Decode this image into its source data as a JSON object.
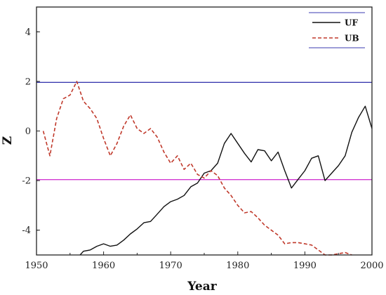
{
  "chart_data": {
    "type": "line",
    "xlabel": "Year",
    "ylabel": "Z",
    "xlim": [
      1950,
      2000
    ],
    "ylim": [
      -5,
      5
    ],
    "xticks": [
      1950,
      1960,
      1970,
      1980,
      1990,
      2000
    ],
    "yticks": [
      -4,
      -2,
      0,
      2,
      4
    ],
    "grid": false,
    "legend": "top-right",
    "reference_lines": [
      {
        "y": 1.96,
        "color": "#3b3bb0"
      },
      {
        "y": -1.96,
        "color": "#d23ad2"
      }
    ],
    "series": [
      {
        "name": "UF",
        "style": "solid",
        "color": "#111111",
        "x": [
          1956.5,
          1957,
          1958,
          1959,
          1960,
          1961,
          1962,
          1963,
          1964,
          1965,
          1966,
          1967,
          1968,
          1969,
          1970,
          1971,
          1972,
          1973,
          1974,
          1975,
          1976,
          1977,
          1978,
          1979,
          1980,
          1981,
          1982,
          1983,
          1984,
          1985,
          1986,
          1987,
          1988,
          1989,
          1990,
          1991,
          1992,
          1993,
          1994,
          1995,
          1996,
          1997,
          1998,
          1999,
          2000
        ],
        "y": [
          -5.0,
          -4.85,
          -4.8,
          -4.65,
          -4.55,
          -4.65,
          -4.6,
          -4.4,
          -4.15,
          -3.95,
          -3.7,
          -3.65,
          -3.35,
          -3.05,
          -2.85,
          -2.75,
          -2.6,
          -2.25,
          -2.1,
          -1.7,
          -1.6,
          -1.3,
          -0.5,
          -0.1,
          -0.5,
          -0.9,
          -1.25,
          -0.75,
          -0.8,
          -1.2,
          -0.85,
          -1.6,
          -2.3,
          -1.95,
          -1.6,
          -1.1,
          -1.0,
          -2.0,
          -1.7,
          -1.4,
          -1.0,
          -0.05,
          0.55,
          1.0,
          0.1
        ]
      },
      {
        "name": "UB",
        "style": "dashed",
        "color": "#c0392b",
        "x": [
          1951,
          1952,
          1953,
          1954,
          1955,
          1956,
          1957,
          1958,
          1959,
          1960,
          1961,
          1962,
          1963,
          1964,
          1965,
          1966,
          1967,
          1968,
          1969,
          1970,
          1971,
          1972,
          1973,
          1974,
          1975,
          1976,
          1977,
          1978,
          1979,
          1980,
          1981,
          1982,
          1983,
          1984,
          1985,
          1986,
          1987,
          1988,
          1989,
          1990,
          1991,
          1992,
          1993,
          1994,
          1995,
          1996,
          1997
        ],
        "y": [
          0.0,
          -1.0,
          0.5,
          1.3,
          1.45,
          2.0,
          1.2,
          0.9,
          0.5,
          -0.3,
          -1.0,
          -0.5,
          0.2,
          0.65,
          0.1,
          -0.1,
          0.1,
          -0.25,
          -0.85,
          -1.3,
          -1.0,
          -1.55,
          -1.3,
          -1.75,
          -1.9,
          -1.6,
          -1.8,
          -2.3,
          -2.6,
          -3.0,
          -3.3,
          -3.25,
          -3.5,
          -3.8,
          -4.0,
          -4.2,
          -4.55,
          -4.5,
          -4.5,
          -4.55,
          -4.6,
          -4.8,
          -5.0,
          -5.0,
          -4.95,
          -4.9,
          -5.0
        ]
      }
    ]
  }
}
